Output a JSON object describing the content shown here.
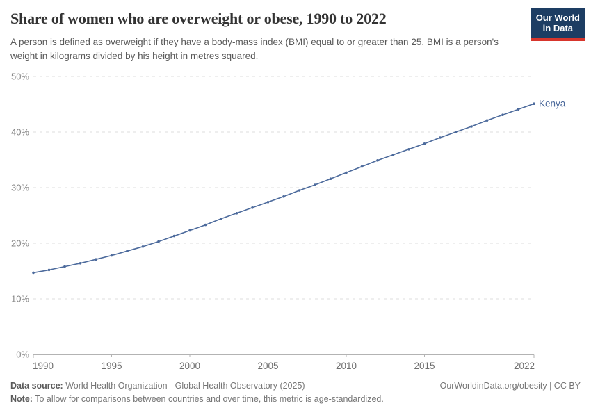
{
  "header": {
    "title": "Share of women who are overweight or obese, 1990 to 2022",
    "subtitle": "A person is defined as overweight if they have a body-mass index (BMI) equal to or greater than 25. BMI is a person's weight in kilograms divided by his height in metres squared.",
    "logo": {
      "line1": "Our World",
      "line2": "in Data",
      "bg_color": "#1d3d63",
      "accent_color": "#d7352c"
    }
  },
  "chart_data": {
    "type": "line",
    "title": "Share of women who are overweight or obese, 1990 to 2022",
    "xlabel": "",
    "ylabel": "",
    "xlim": [
      1990,
      2022
    ],
    "ylim": [
      0,
      50
    ],
    "xticks": [
      1990,
      1995,
      2000,
      2005,
      2010,
      2015,
      2022
    ],
    "yticks": [
      0,
      10,
      20,
      30,
      40,
      50
    ],
    "ytick_suffix": "%",
    "grid": "horizontal-dashed",
    "legend_position": "end-of-line",
    "series": [
      {
        "name": "Kenya",
        "color": "#4C6A9C",
        "x": [
          1990,
          1991,
          1992,
          1993,
          1994,
          1995,
          1996,
          1997,
          1998,
          1999,
          2000,
          2001,
          2002,
          2003,
          2004,
          2005,
          2006,
          2007,
          2008,
          2009,
          2010,
          2011,
          2012,
          2013,
          2014,
          2015,
          2016,
          2017,
          2018,
          2019,
          2020,
          2021,
          2022
        ],
        "values": [
          14.7,
          15.2,
          15.8,
          16.4,
          17.1,
          17.8,
          18.6,
          19.4,
          20.3,
          21.3,
          22.3,
          23.3,
          24.4,
          25.4,
          26.4,
          27.4,
          28.4,
          29.5,
          30.5,
          31.6,
          32.7,
          33.8,
          34.9,
          35.9,
          36.9,
          37.9,
          39.0,
          40.0,
          41.0,
          42.1,
          43.1,
          44.1,
          45.1
        ]
      }
    ],
    "styling": {
      "gridline_color": "#dcdcdc",
      "axis_color": "#b3b3b3",
      "ytick_label_color": "#878787",
      "xtick_label_color": "#6e6e6e"
    }
  },
  "footer": {
    "datasource_label": "Data source:",
    "datasource_text": " World Health Organization - Global Health Observatory (2025)",
    "url_text": "OurWorldinData.org/obesity | CC BY",
    "note_label": "Note:",
    "note_text": " To allow for comparisons between countries and over time, this metric is age-standardized."
  }
}
